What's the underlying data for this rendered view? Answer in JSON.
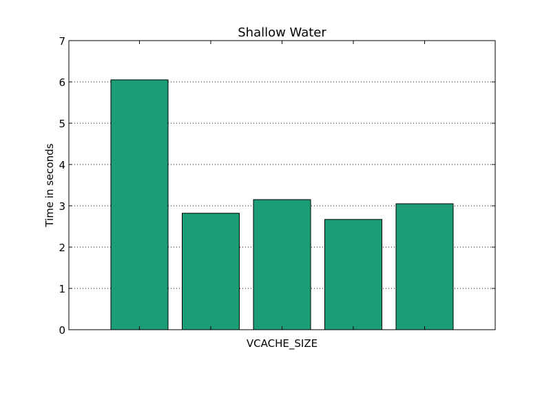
{
  "chart_data": {
    "type": "bar",
    "title": "Shallow Water",
    "xlabel": "VCACHE_SIZE",
    "ylabel": "Time in seconds",
    "ylim": [
      0,
      7
    ],
    "yticks": [
      "0",
      "1",
      "2",
      "3",
      "4",
      "5",
      "6",
      "7"
    ],
    "values": [
      6.05,
      2.82,
      3.15,
      2.67,
      3.05
    ],
    "bar_color": "#1b9e77",
    "edge_color": "#000000",
    "grid": "y-dotted",
    "legend": "none"
  }
}
